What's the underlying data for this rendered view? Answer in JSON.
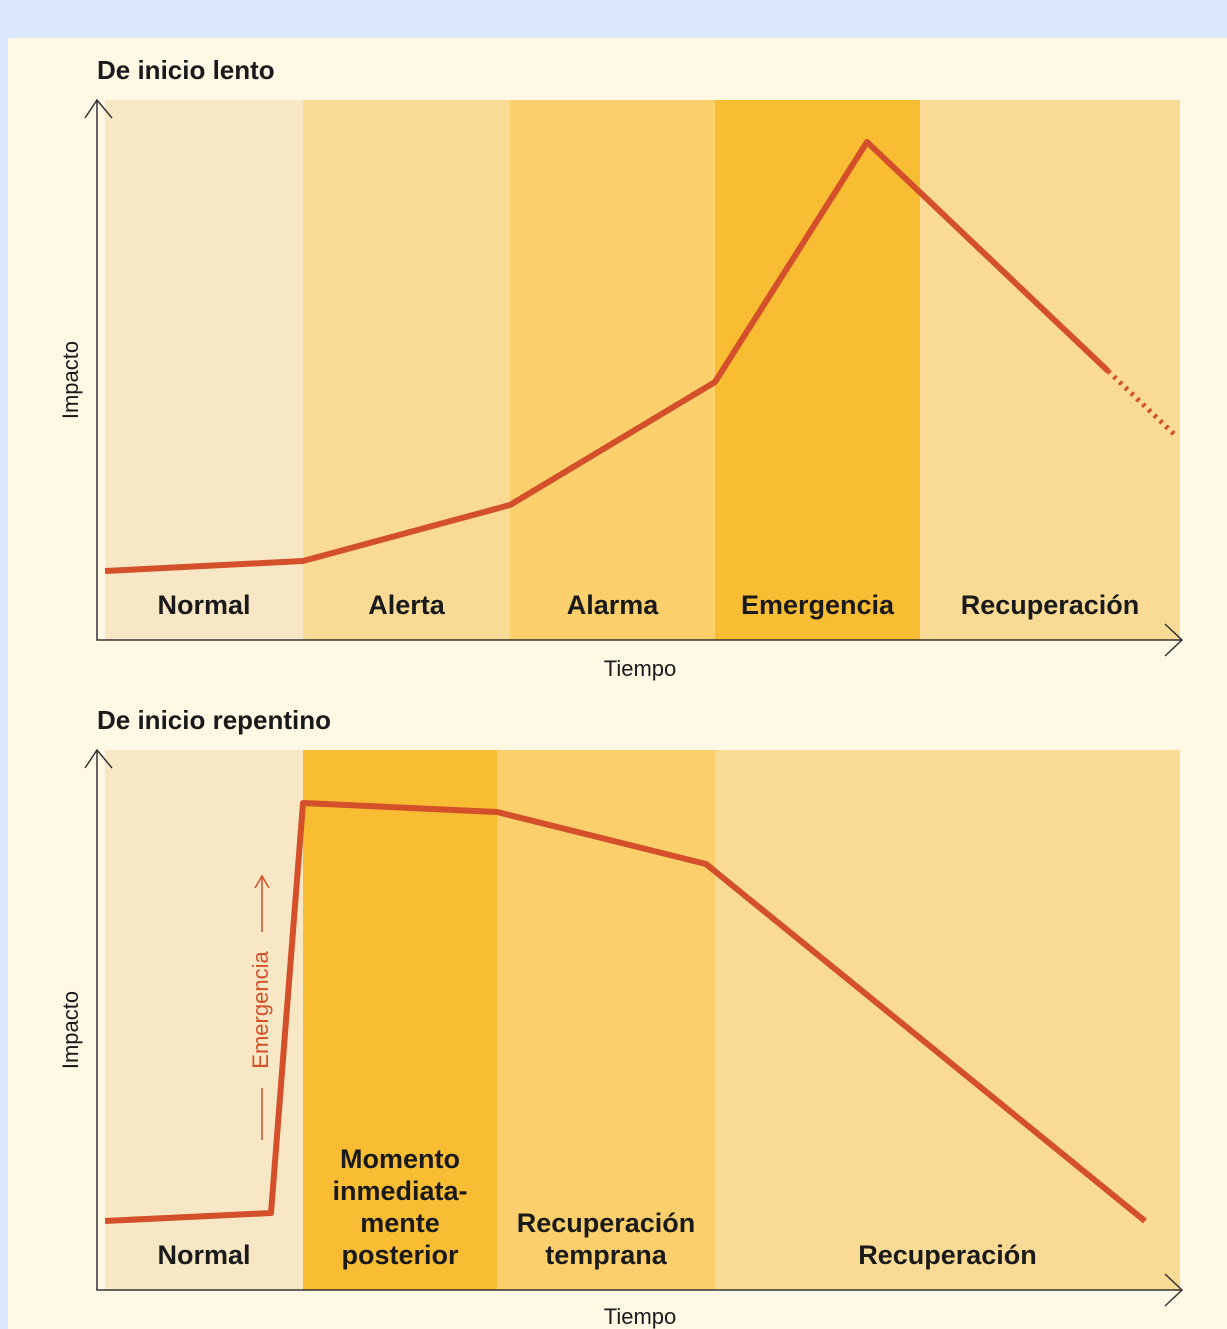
{
  "panels": [
    {
      "title": "De inicio lento",
      "y_label": "Impacto",
      "x_label": "Tiempo",
      "phases": [
        [
          "Normal"
        ],
        [
          "Alerta"
        ],
        [
          "Alarma"
        ],
        [
          "Emergencia"
        ],
        [
          "Recuperación"
        ]
      ]
    },
    {
      "title": "De inicio repentino",
      "y_label": "Impacto",
      "x_label": "Tiempo",
      "phases": [
        [
          "Normal"
        ],
        [
          "Momento",
          "inmediata-",
          "mente",
          "posterior"
        ],
        [
          "Recuperación",
          "temprana"
        ],
        [
          "Recuperación"
        ]
      ],
      "annotation": "Emergencia"
    }
  ]
}
